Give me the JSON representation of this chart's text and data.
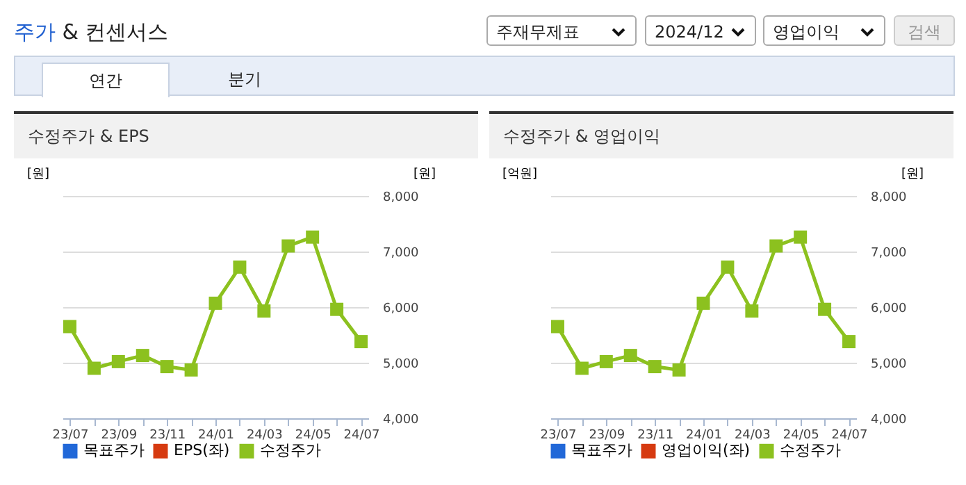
{
  "chart_data": [
    {
      "type": "other",
      "title": "주가 & 컨센서스",
      "annotations": [
        "주재무제표",
        "2024/12",
        "영업이익",
        "검색",
        "연간",
        "분기"
      ]
    },
    {
      "type": "line",
      "title": "수정주가 & EPS",
      "ylabel": "[원]",
      "y2label": "[원]",
      "categories": [
        "23/07",
        null,
        "23/09",
        null,
        "23/11",
        null,
        "24/01",
        null,
        "24/03",
        null,
        "24/05",
        null,
        "24/07"
      ],
      "y2lim": [
        4000,
        8000
      ],
      "y2ticks": [
        {
          "value": 4000,
          "label": "4,000"
        },
        {
          "value": 5000,
          "label": "5,000"
        },
        {
          "value": 6000,
          "label": "6,000"
        },
        {
          "value": 7000,
          "label": "7,000"
        },
        {
          "value": 8000,
          "label": "8,000"
        }
      ],
      "grid": "y",
      "legend": "bottom",
      "marker": "square",
      "series": [
        {
          "name": "목표주가",
          "color": "#2168d8",
          "values": [
            null,
            null,
            null,
            null,
            null,
            null,
            null,
            null,
            null,
            null,
            null,
            null,
            null
          ]
        },
        {
          "name": "EPS(좌)",
          "color": "#d63a10",
          "values": [
            null,
            null,
            null,
            null,
            null,
            null,
            null,
            null,
            null,
            null,
            null,
            null,
            null
          ]
        },
        {
          "name": "수정주가",
          "color": "#8cc11f",
          "axis": "y2",
          "values": [
            5650,
            4900,
            5020,
            5130,
            4930,
            4870,
            6070,
            6720,
            5930,
            7100,
            7260,
            5960,
            5380
          ]
        }
      ]
    },
    {
      "type": "line",
      "title": "수정주가 & 영업이익",
      "ylabel": "[억원]",
      "y2label": "[원]",
      "categories": [
        "23/07",
        null,
        "23/09",
        null,
        "23/11",
        null,
        "24/01",
        null,
        "24/03",
        null,
        "24/05",
        null,
        "24/07"
      ],
      "y2lim": [
        4000,
        8000
      ],
      "y2ticks": [
        {
          "value": 4000,
          "label": "4,000"
        },
        {
          "value": 5000,
          "label": "5,000"
        },
        {
          "value": 6000,
          "label": "6,000"
        },
        {
          "value": 7000,
          "label": "7,000"
        },
        {
          "value": 8000,
          "label": "8,000"
        }
      ],
      "grid": "y",
      "legend": "bottom",
      "marker": "square",
      "series": [
        {
          "name": "목표주가",
          "color": "#2168d8",
          "values": [
            null,
            null,
            null,
            null,
            null,
            null,
            null,
            null,
            null,
            null,
            null,
            null,
            null
          ]
        },
        {
          "name": "영업이익(좌)",
          "color": "#d63a10",
          "values": [
            null,
            null,
            null,
            null,
            null,
            null,
            null,
            null,
            null,
            null,
            null,
            null,
            null
          ]
        },
        {
          "name": "수정주가",
          "color": "#8cc11f",
          "axis": "y2",
          "values": [
            5650,
            4900,
            5020,
            5130,
            4930,
            4870,
            6070,
            6720,
            5930,
            7100,
            7260,
            5960,
            5380
          ]
        }
      ]
    }
  ]
}
